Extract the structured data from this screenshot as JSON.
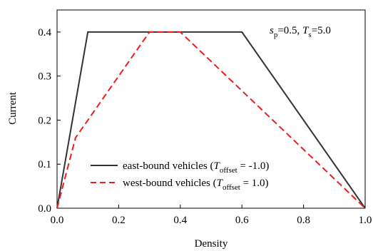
{
  "chart_data": {
    "type": "line",
    "xlabel": "Density",
    "ylabel": "Current",
    "xlim": [
      0.0,
      1.0
    ],
    "ylim": [
      0.0,
      0.45
    ],
    "xticks": [
      "0.0",
      "0.2",
      "0.4",
      "0.6",
      "0.8",
      "1.0"
    ],
    "yticks": [
      "0.0",
      "0.1",
      "0.2",
      "0.3",
      "0.4"
    ],
    "annotation": {
      "s_symbol": "s",
      "s_sub": "p",
      "s_value": "=0.5, ",
      "t_symbol": "T",
      "t_sub": "s",
      "t_value": "=5.0"
    },
    "legend_position": "lower-left",
    "series": [
      {
        "legend_prefix": "east-bound vehicles (",
        "legend_symbol": "T",
        "legend_sub": "offset",
        "legend_suffix": " = -1.0)",
        "color": "#333333",
        "dash": "solid",
        "x": [
          0.0,
          0.1,
          0.6,
          1.0
        ],
        "y": [
          0.0,
          0.4,
          0.4,
          0.0
        ]
      },
      {
        "legend_prefix": "west-bound vehicles (",
        "legend_symbol": "T",
        "legend_sub": "offset",
        "legend_suffix": " = 1.0)",
        "color": "#ee1c1c",
        "dash": "dashed",
        "x": [
          0.0,
          0.06,
          0.3,
          0.4,
          1.0
        ],
        "y": [
          0.0,
          0.16,
          0.4,
          0.4,
          0.0
        ]
      }
    ]
  }
}
